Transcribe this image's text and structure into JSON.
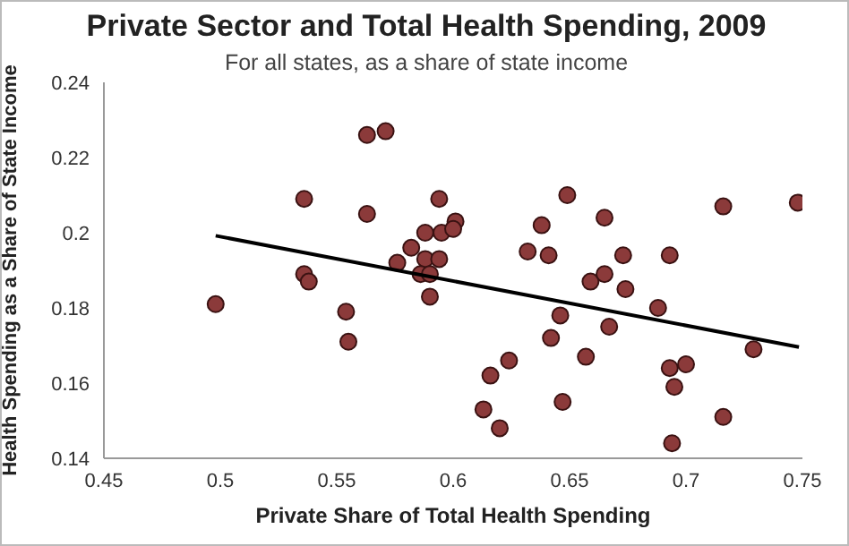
{
  "chart_data": {
    "type": "scatter",
    "title": "Private Sector and Total Health Spending, 2009",
    "subtitle": "For all states, as a share of state income",
    "xlabel": "Private Share of Total Health Spending",
    "ylabel": "Health Spending as a Share of State Income",
    "xlim": [
      0.45,
      0.75
    ],
    "xticks": [
      0.45,
      0.5,
      0.55,
      0.6,
      0.65,
      0.7,
      0.75
    ],
    "ylim": [
      0.14,
      0.24
    ],
    "yticks": [
      0.14,
      0.16,
      0.18,
      0.2,
      0.22,
      0.24
    ],
    "marker": "circle",
    "series": [
      {
        "color": "#8b3a3a",
        "x": [
          0.498,
          0.536,
          0.536,
          0.538,
          0.554,
          0.555,
          0.563,
          0.571,
          0.563,
          0.576,
          0.582,
          0.588,
          0.588,
          0.586,
          0.59,
          0.59,
          0.594,
          0.595,
          0.594,
          0.601,
          0.6,
          0.632,
          0.638,
          0.641,
          0.649,
          0.665,
          0.673,
          0.659,
          0.665,
          0.674,
          0.646,
          0.642,
          0.667,
          0.688,
          0.693,
          0.716,
          0.748,
          0.729,
          0.624,
          0.616,
          0.613,
          0.62,
          0.657,
          0.647,
          0.693,
          0.7,
          0.695,
          0.716,
          0.694
        ],
        "values": [
          0.181,
          0.209,
          0.189,
          0.187,
          0.179,
          0.171,
          0.226,
          0.227,
          0.205,
          0.192,
          0.196,
          0.2,
          0.193,
          0.189,
          0.189,
          0.183,
          0.209,
          0.2,
          0.193,
          0.203,
          0.201,
          0.195,
          0.202,
          0.194,
          0.21,
          0.204,
          0.194,
          0.187,
          0.189,
          0.185,
          0.178,
          0.172,
          0.175,
          0.18,
          0.194,
          0.207,
          0.208,
          0.169,
          0.166,
          0.162,
          0.153,
          0.148,
          0.167,
          0.155,
          0.164,
          0.165,
          0.159,
          0.151,
          0.144
        ]
      },
      {
        "type": "line",
        "marker": "none",
        "color": "#000000",
        "x": [
          0.498,
          0.7485
        ],
        "values": [
          0.1992,
          0.1696
        ]
      }
    ]
  }
}
